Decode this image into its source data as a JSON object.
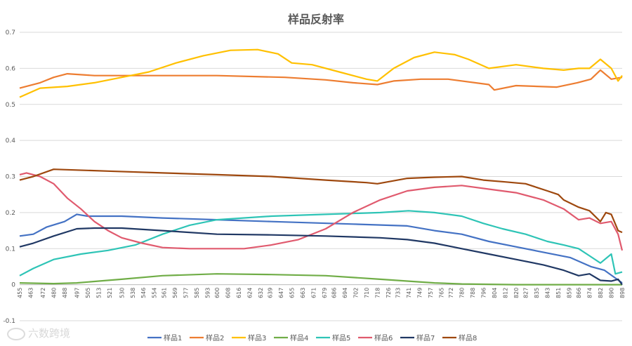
{
  "chart_data": {
    "type": "line",
    "title": "样品反射率",
    "xlabel": "",
    "ylabel": "",
    "ylim": [
      -0.1,
      0.7
    ],
    "yticks": [
      -0.1,
      0,
      0.1,
      0.2,
      0.3,
      0.4,
      0.5,
      0.6,
      0.7
    ],
    "ytick_labels": [
      "-0.1",
      "0",
      "0.1",
      "0.2",
      "0.3",
      "0.4",
      "0.5",
      "0.6",
      "0.7"
    ],
    "xrange": [
      455,
      898
    ],
    "xticks": [
      455,
      463,
      472,
      480,
      488,
      497,
      505,
      513,
      521,
      530,
      538,
      546,
      554,
      561,
      569,
      577,
      585,
      593,
      600,
      608,
      616,
      624,
      632,
      639,
      647,
      655,
      663,
      671,
      679,
      686,
      694,
      702,
      710,
      718,
      726,
      733,
      741,
      749,
      757,
      765,
      772,
      780,
      788,
      796,
      804,
      812,
      820,
      827,
      835,
      843,
      851,
      859,
      866,
      874,
      882,
      890,
      898
    ],
    "grid": "horizontal",
    "legend_position": "bottom",
    "series": [
      {
        "name": "样品1",
        "color": "#4472C4",
        "points": [
          [
            455,
            0.135
          ],
          [
            465,
            0.14
          ],
          [
            475,
            0.16
          ],
          [
            488,
            0.175
          ],
          [
            497,
            0.195
          ],
          [
            505,
            0.19
          ],
          [
            530,
            0.19
          ],
          [
            560,
            0.185
          ],
          [
            600,
            0.18
          ],
          [
            640,
            0.175
          ],
          [
            700,
            0.168
          ],
          [
            740,
            0.163
          ],
          [
            760,
            0.15
          ],
          [
            780,
            0.14
          ],
          [
            800,
            0.12
          ],
          [
            820,
            0.105
          ],
          [
            840,
            0.09
          ],
          [
            860,
            0.075
          ],
          [
            875,
            0.05
          ],
          [
            885,
            0.04
          ],
          [
            898,
            0.005
          ]
        ]
      },
      {
        "name": "样品2",
        "color": "#ED7D31",
        "points": [
          [
            455,
            0.545
          ],
          [
            470,
            0.56
          ],
          [
            480,
            0.575
          ],
          [
            490,
            0.585
          ],
          [
            510,
            0.58
          ],
          [
            540,
            0.58
          ],
          [
            600,
            0.58
          ],
          [
            650,
            0.575
          ],
          [
            680,
            0.568
          ],
          [
            700,
            0.56
          ],
          [
            718,
            0.555
          ],
          [
            730,
            0.565
          ],
          [
            750,
            0.57
          ],
          [
            770,
            0.57
          ],
          [
            800,
            0.555
          ],
          [
            804,
            0.54
          ],
          [
            820,
            0.552
          ],
          [
            850,
            0.548
          ],
          [
            865,
            0.56
          ],
          [
            875,
            0.57
          ],
          [
            882,
            0.595
          ],
          [
            890,
            0.57
          ],
          [
            898,
            0.575
          ]
        ]
      },
      {
        "name": "样品3",
        "color": "#FFC000",
        "points": [
          [
            455,
            0.52
          ],
          [
            470,
            0.545
          ],
          [
            490,
            0.55
          ],
          [
            510,
            0.56
          ],
          [
            530,
            0.575
          ],
          [
            550,
            0.59
          ],
          [
            570,
            0.615
          ],
          [
            590,
            0.635
          ],
          [
            610,
            0.65
          ],
          [
            630,
            0.652
          ],
          [
            645,
            0.64
          ],
          [
            655,
            0.615
          ],
          [
            670,
            0.61
          ],
          [
            690,
            0.59
          ],
          [
            710,
            0.57
          ],
          [
            718,
            0.565
          ],
          [
            730,
            0.6
          ],
          [
            745,
            0.63
          ],
          [
            760,
            0.645
          ],
          [
            775,
            0.638
          ],
          [
            785,
            0.625
          ],
          [
            800,
            0.6
          ],
          [
            820,
            0.61
          ],
          [
            840,
            0.6
          ],
          [
            855,
            0.595
          ],
          [
            866,
            0.6
          ],
          [
            874,
            0.6
          ],
          [
            882,
            0.625
          ],
          [
            890,
            0.6
          ],
          [
            895,
            0.565
          ],
          [
            898,
            0.58
          ]
        ]
      },
      {
        "name": "样品4",
        "color": "#70AD47",
        "points": [
          [
            455,
            0.005
          ],
          [
            480,
            0.003
          ],
          [
            497,
            0.005
          ],
          [
            530,
            0.015
          ],
          [
            560,
            0.025
          ],
          [
            600,
            0.03
          ],
          [
            640,
            0.028
          ],
          [
            680,
            0.025
          ],
          [
            720,
            0.015
          ],
          [
            760,
            0.005
          ],
          [
            780,
            0.002
          ],
          [
            820,
            0.0
          ],
          [
            860,
            0.0
          ],
          [
            898,
            0.0
          ]
        ]
      },
      {
        "name": "样品5",
        "color": "#2EC4B6",
        "points": [
          [
            455,
            0.025
          ],
          [
            465,
            0.045
          ],
          [
            480,
            0.07
          ],
          [
            500,
            0.085
          ],
          [
            520,
            0.095
          ],
          [
            540,
            0.11
          ],
          [
            560,
            0.14
          ],
          [
            580,
            0.165
          ],
          [
            600,
            0.18
          ],
          [
            640,
            0.19
          ],
          [
            680,
            0.195
          ],
          [
            720,
            0.2
          ],
          [
            741,
            0.205
          ],
          [
            760,
            0.2
          ],
          [
            780,
            0.19
          ],
          [
            796,
            0.17
          ],
          [
            810,
            0.155
          ],
          [
            827,
            0.14
          ],
          [
            843,
            0.12
          ],
          [
            855,
            0.11
          ],
          [
            866,
            0.1
          ],
          [
            874,
            0.08
          ],
          [
            882,
            0.06
          ],
          [
            890,
            0.085
          ],
          [
            893,
            0.03
          ],
          [
            898,
            0.035
          ]
        ]
      },
      {
        "name": "样品6",
        "color": "#E05A6E",
        "points": [
          [
            455,
            0.305
          ],
          [
            460,
            0.31
          ],
          [
            470,
            0.3
          ],
          [
            480,
            0.28
          ],
          [
            490,
            0.24
          ],
          [
            500,
            0.21
          ],
          [
            510,
            0.175
          ],
          [
            520,
            0.15
          ],
          [
            530,
            0.13
          ],
          [
            545,
            0.115
          ],
          [
            560,
            0.103
          ],
          [
            580,
            0.1
          ],
          [
            600,
            0.1
          ],
          [
            620,
            0.1
          ],
          [
            640,
            0.11
          ],
          [
            660,
            0.125
          ],
          [
            680,
            0.155
          ],
          [
            700,
            0.2
          ],
          [
            720,
            0.235
          ],
          [
            740,
            0.26
          ],
          [
            760,
            0.27
          ],
          [
            780,
            0.275
          ],
          [
            800,
            0.265
          ],
          [
            820,
            0.255
          ],
          [
            840,
            0.235
          ],
          [
            855,
            0.21
          ],
          [
            866,
            0.18
          ],
          [
            874,
            0.185
          ],
          [
            882,
            0.17
          ],
          [
            890,
            0.175
          ],
          [
            895,
            0.14
          ],
          [
            898,
            0.095
          ]
        ]
      },
      {
        "name": "样品7",
        "color": "#203864",
        "points": [
          [
            455,
            0.105
          ],
          [
            465,
            0.115
          ],
          [
            480,
            0.135
          ],
          [
            497,
            0.155
          ],
          [
            510,
            0.157
          ],
          [
            530,
            0.157
          ],
          [
            560,
            0.15
          ],
          [
            600,
            0.14
          ],
          [
            640,
            0.138
          ],
          [
            680,
            0.135
          ],
          [
            720,
            0.13
          ],
          [
            740,
            0.125
          ],
          [
            760,
            0.115
          ],
          [
            780,
            0.1
          ],
          [
            800,
            0.085
          ],
          [
            820,
            0.07
          ],
          [
            840,
            0.055
          ],
          [
            855,
            0.04
          ],
          [
            866,
            0.025
          ],
          [
            874,
            0.03
          ],
          [
            882,
            0.012
          ],
          [
            890,
            0.01
          ],
          [
            895,
            0.015
          ],
          [
            898,
            0.0
          ]
        ]
      },
      {
        "name": "样品8",
        "color": "#9E480E",
        "points": [
          [
            455,
            0.29
          ],
          [
            465,
            0.3
          ],
          [
            480,
            0.32
          ],
          [
            497,
            0.318
          ],
          [
            520,
            0.315
          ],
          [
            560,
            0.31
          ],
          [
            600,
            0.305
          ],
          [
            640,
            0.3
          ],
          [
            680,
            0.29
          ],
          [
            710,
            0.283
          ],
          [
            718,
            0.28
          ],
          [
            740,
            0.295
          ],
          [
            760,
            0.298
          ],
          [
            780,
            0.3
          ],
          [
            796,
            0.29
          ],
          [
            812,
            0.285
          ],
          [
            827,
            0.28
          ],
          [
            835,
            0.27
          ],
          [
            843,
            0.26
          ],
          [
            851,
            0.25
          ],
          [
            855,
            0.235
          ],
          [
            866,
            0.215
          ],
          [
            874,
            0.205
          ],
          [
            882,
            0.175
          ],
          [
            886,
            0.2
          ],
          [
            890,
            0.195
          ],
          [
            895,
            0.15
          ],
          [
            898,
            0.145
          ]
        ]
      }
    ]
  },
  "watermark": "六数跨境"
}
